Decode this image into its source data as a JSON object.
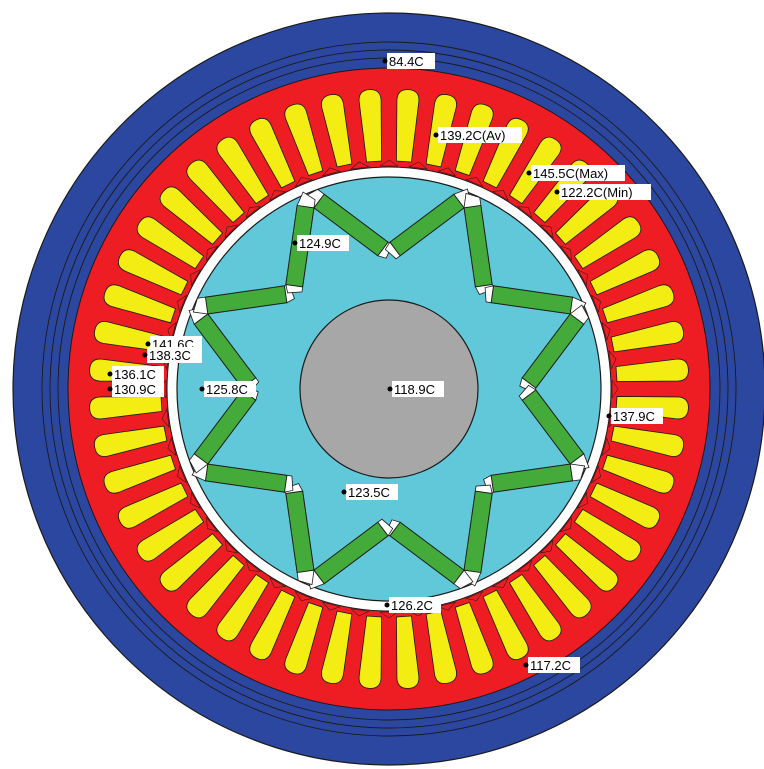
{
  "colors": {
    "housing": "#2c47a0",
    "stator_core": "#ee1c23",
    "winding": "#f3ed14",
    "rotor_core": "#60c8d8",
    "magnet": "#44aa3a",
    "shaft": "#a7a7a7",
    "outline": "#1a1a1a"
  },
  "counts": {
    "stator_slots": 48,
    "rotor_poles": 8
  },
  "probes": [
    {
      "id": "housing-top",
      "label": "84.4C"
    },
    {
      "id": "winding-average",
      "label": "139.2C(Av)"
    },
    {
      "id": "winding-max",
      "label": "145.5C(Max)"
    },
    {
      "id": "winding-min",
      "label": "122.2C(Min)"
    },
    {
      "id": "magnet-upper",
      "label": "124.9C"
    },
    {
      "id": "winding-left-1",
      "label": "141.6C"
    },
    {
      "id": "winding-left-2",
      "label": "138.3C"
    },
    {
      "id": "winding-left-3",
      "label": "136.1C"
    },
    {
      "id": "winding-left-4",
      "label": "130.9C"
    },
    {
      "id": "rotor-left",
      "label": "125.8C"
    },
    {
      "id": "shaft",
      "label": "118.9C"
    },
    {
      "id": "winding-right",
      "label": "137.9C"
    },
    {
      "id": "rotor-lower",
      "label": "123.5C"
    },
    {
      "id": "rotor-bottom",
      "label": "126.2C"
    },
    {
      "id": "stator-yoke",
      "label": "117.2C"
    }
  ]
}
